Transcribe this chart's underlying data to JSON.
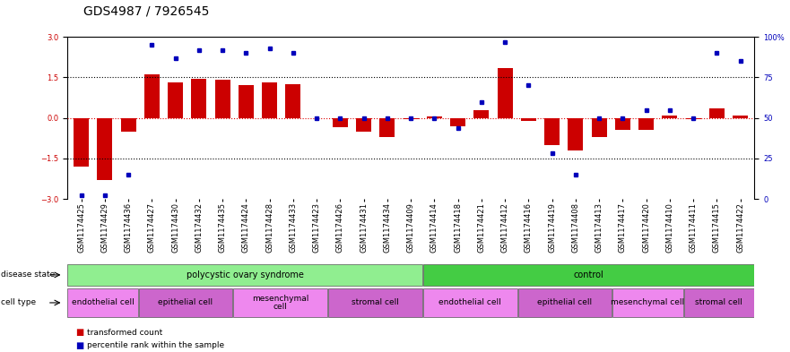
{
  "title": "GDS4987 / 7926545",
  "samples": [
    "GSM1174425",
    "GSM1174429",
    "GSM1174436",
    "GSM1174427",
    "GSM1174430",
    "GSM1174432",
    "GSM1174435",
    "GSM1174424",
    "GSM1174428",
    "GSM1174433",
    "GSM1174423",
    "GSM1174426",
    "GSM1174431",
    "GSM1174434",
    "GSM1174409",
    "GSM1174414",
    "GSM1174418",
    "GSM1174421",
    "GSM1174412",
    "GSM1174416",
    "GSM1174419",
    "GSM1174408",
    "GSM1174413",
    "GSM1174417",
    "GSM1174420",
    "GSM1174410",
    "GSM1174411",
    "GSM1174415",
    "GSM1174422"
  ],
  "bar_values": [
    -1.8,
    -2.3,
    -0.5,
    1.6,
    1.3,
    1.45,
    1.4,
    1.2,
    1.3,
    1.25,
    0.0,
    -0.35,
    -0.5,
    -0.7,
    -0.05,
    0.05,
    -0.3,
    0.3,
    1.85,
    -0.1,
    -1.0,
    -1.2,
    -0.7,
    -0.45,
    -0.45,
    0.1,
    -0.05,
    0.35,
    0.1
  ],
  "percentile_values": [
    2,
    2,
    15,
    95,
    87,
    92,
    92,
    90,
    93,
    90,
    50,
    50,
    50,
    50,
    50,
    50,
    44,
    60,
    97,
    70,
    28,
    15,
    50,
    50,
    55,
    55,
    50,
    90,
    85
  ],
  "bar_color": "#cc0000",
  "dot_color": "#0000bb",
  "ylim_left": [
    -3,
    3
  ],
  "ylim_right": [
    0,
    100
  ],
  "yticks_left": [
    -3,
    -1.5,
    0,
    1.5,
    3
  ],
  "yticks_right": [
    0,
    25,
    50,
    75,
    100
  ],
  "hlines_dotted": [
    1.5,
    -1.5
  ],
  "hline_zero_color": "#dd0000",
  "background_color": "#ffffff",
  "title_fontsize": 10,
  "tick_fontsize": 6,
  "ds_groups": [
    {
      "label": "polycystic ovary syndrome",
      "start": 0,
      "end": 15,
      "color": "#90ee90"
    },
    {
      "label": "control",
      "start": 15,
      "end": 29,
      "color": "#44cc44"
    }
  ],
  "ct_groups": [
    {
      "label": "endothelial cell",
      "start": 0,
      "end": 3,
      "color": "#ee88ee"
    },
    {
      "label": "epithelial cell",
      "start": 3,
      "end": 7,
      "color": "#cc66cc"
    },
    {
      "label": "mesenchymal\ncell",
      "start": 7,
      "end": 11,
      "color": "#ee88ee"
    },
    {
      "label": "stromal cell",
      "start": 11,
      "end": 15,
      "color": "#cc66cc"
    },
    {
      "label": "endothelial cell",
      "start": 15,
      "end": 19,
      "color": "#ee88ee"
    },
    {
      "label": "epithelial cell",
      "start": 19,
      "end": 23,
      "color": "#cc66cc"
    },
    {
      "label": "mesenchymal cell",
      "start": 23,
      "end": 26,
      "color": "#ee88ee"
    },
    {
      "label": "stromal cell",
      "start": 26,
      "end": 29,
      "color": "#cc66cc"
    }
  ]
}
